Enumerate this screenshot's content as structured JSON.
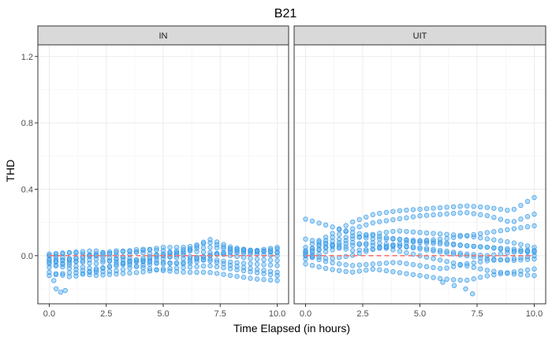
{
  "chart_data": {
    "type": "scatter",
    "title": "B21",
    "xlabel": "Time Elapsed (in hours)",
    "ylabel": "THD",
    "xlim": [
      -0.5,
      10.5
    ],
    "ylim": [
      -0.29,
      1.27
    ],
    "x_ticks": [
      0,
      2.5,
      5,
      7.5,
      10
    ],
    "x_tick_labels": [
      "0.0",
      "2.5",
      "5.0",
      "7.5",
      "10.0"
    ],
    "y_ticks": [
      0,
      0.4,
      0.8,
      1.2
    ],
    "y_tick_labels": [
      "0.0",
      "0.4",
      "0.8",
      "1.2"
    ],
    "grid": true,
    "point_color": "#56B4E9",
    "point_stroke": "#2E8FE8",
    "reference_line": {
      "y": 0,
      "color": "#F8766D",
      "style": "dashed"
    },
    "panels": [
      {
        "label": "IN",
        "series": [
          {
            "x": [
              0,
              1,
              2,
              3,
              4,
              5,
              6,
              7,
              8,
              9,
              10
            ],
            "y": [
              -0.02,
              -0.03,
              -0.05,
              -0.02,
              0.03,
              0.05,
              0.05,
              0.08,
              0.04,
              0.03,
              0.02
            ]
          },
          {
            "x": [
              0,
              1,
              2,
              3,
              4,
              5,
              6,
              7,
              8,
              9,
              10
            ],
            "y": [
              0.0,
              0.02,
              0.0,
              -0.02,
              -0.04,
              -0.02,
              0.02,
              0.1,
              0.05,
              0.03,
              0.05
            ]
          },
          {
            "x": [
              0,
              1,
              2,
              3,
              4,
              5,
              6,
              7,
              8,
              9,
              10
            ],
            "y": [
              -0.03,
              -0.06,
              -0.08,
              -0.06,
              -0.03,
              0.0,
              0.03,
              0.02,
              0.0,
              -0.02,
              -0.03
            ]
          },
          {
            "x": [
              0,
              1,
              2,
              3,
              4,
              5,
              6,
              7,
              8,
              9,
              10
            ],
            "y": [
              -0.05,
              -0.08,
              -0.1,
              -0.09,
              -0.06,
              -0.04,
              -0.05,
              -0.02,
              -0.04,
              -0.05,
              -0.06
            ]
          },
          {
            "x": [
              0,
              1,
              2,
              3,
              4,
              5,
              6,
              7,
              8,
              9,
              10
            ],
            "y": [
              -0.12,
              -0.1,
              -0.12,
              -0.11,
              -0.1,
              -0.08,
              -0.07,
              -0.06,
              -0.08,
              -0.1,
              -0.12
            ]
          },
          {
            "x": [
              0,
              1,
              2,
              3,
              4,
              5,
              6,
              7,
              8,
              9,
              10
            ],
            "y": [
              0.0,
              -0.02,
              0.01,
              0.03,
              0.02,
              0.0,
              -0.02,
              0.0,
              0.02,
              0.01,
              0.0
            ]
          },
          {
            "x": [
              0,
              1,
              2,
              3,
              4,
              5,
              6,
              7,
              8,
              9,
              10
            ],
            "y": [
              -0.07,
              -0.04,
              -0.02,
              -0.04,
              -0.07,
              -0.09,
              -0.1,
              -0.1,
              -0.12,
              -0.14,
              -0.15
            ]
          },
          {
            "x": [
              0,
              1,
              2,
              3,
              4,
              5,
              6,
              7,
              8,
              9,
              10
            ],
            "y": [
              0.01,
              0.02,
              0.03,
              0.0,
              -0.03,
              -0.05,
              -0.04,
              0.0,
              0.03,
              0.02,
              0.04
            ]
          },
          {
            "x": [
              0,
              1,
              2,
              3,
              4,
              5,
              6,
              7,
              8,
              9,
              10
            ],
            "y": [
              -0.04,
              -0.02,
              0.0,
              0.02,
              0.04,
              0.03,
              0.0,
              -0.03,
              -0.06,
              -0.08,
              -0.1
            ]
          },
          {
            "x": [
              0,
              1,
              2,
              3,
              4,
              5,
              6,
              7,
              8,
              9,
              10
            ],
            "y": [
              -0.1,
              -0.13,
              -0.09,
              -0.05,
              -0.02,
              0.01,
              0.04,
              0.05,
              0.04,
              0.03,
              0.02
            ]
          }
        ],
        "extra_points": {
          "x": [
            0.3,
            0.5,
            0.7,
            0.2
          ],
          "y": [
            -0.2,
            -0.22,
            -0.21,
            -0.15
          ]
        }
      },
      {
        "label": "UIT",
        "series": [
          {
            "x": [
              0,
              1,
              2,
              3,
              4,
              5,
              6,
              7,
              8,
              9,
              10
            ],
            "y": [
              0.05,
              0.12,
              0.2,
              0.25,
              0.27,
              0.28,
              0.29,
              0.3,
              0.29,
              0.27,
              0.35
            ]
          },
          {
            "x": [
              0,
              1,
              2,
              3,
              4,
              5,
              6,
              7,
              8,
              9,
              10
            ],
            "y": [
              0.02,
              0.1,
              0.16,
              0.2,
              0.22,
              0.24,
              0.25,
              0.26,
              0.24,
              0.2,
              0.25
            ]
          },
          {
            "x": [
              0,
              1,
              2,
              3,
              4,
              5,
              6,
              7,
              8,
              9,
              10
            ],
            "y": [
              0.0,
              0.06,
              0.1,
              0.13,
              0.15,
              0.14,
              0.13,
              0.12,
              0.1,
              0.08,
              0.05
            ]
          },
          {
            "x": [
              0,
              1,
              2,
              3,
              4,
              5,
              6,
              7,
              8,
              9,
              10
            ],
            "y": [
              0.03,
              0.08,
              0.12,
              0.1,
              0.1,
              0.09,
              0.08,
              0.06,
              0.05,
              0.03,
              0.02
            ]
          },
          {
            "x": [
              0,
              1,
              2,
              3,
              4,
              5,
              6,
              7,
              8,
              9,
              10
            ],
            "y": [
              -0.02,
              0.03,
              0.06,
              0.08,
              0.06,
              0.04,
              0.02,
              0.0,
              -0.02,
              -0.03,
              -0.02
            ]
          },
          {
            "x": [
              0,
              1,
              2,
              3,
              4,
              5,
              6,
              7,
              8,
              9,
              10
            ],
            "y": [
              0.0,
              -0.04,
              -0.06,
              -0.05,
              -0.04,
              -0.06,
              -0.08,
              -0.05,
              -0.03,
              -0.02,
              0.0
            ]
          },
          {
            "x": [
              0,
              1,
              2,
              3,
              4,
              5,
              6,
              7,
              8,
              9,
              10
            ],
            "y": [
              -0.05,
              -0.08,
              -0.1,
              -0.08,
              -0.1,
              -0.12,
              -0.14,
              -0.15,
              -0.12,
              -0.1,
              -0.08
            ]
          },
          {
            "x": [
              0,
              1,
              2,
              3,
              4,
              5,
              6,
              7,
              8,
              9,
              10
            ],
            "y": [
              0.22,
              0.18,
              0.14,
              0.12,
              0.1,
              0.08,
              0.07,
              0.06,
              0.05,
              0.04,
              0.03
            ]
          },
          {
            "x": [
              0,
              1,
              2,
              3,
              4,
              5,
              6,
              7,
              8,
              9,
              10
            ],
            "y": [
              0.02,
              0.05,
              0.08,
              0.06,
              0.03,
              0.0,
              -0.03,
              -0.06,
              -0.09,
              -0.11,
              -0.12
            ]
          },
          {
            "x": [
              0,
              1,
              2,
              3,
              4,
              5,
              6,
              7,
              8,
              9,
              10
            ],
            "y": [
              0.1,
              0.07,
              0.03,
              0.04,
              0.06,
              0.05,
              0.03,
              0.01,
              0.0,
              0.02,
              0.03
            ]
          },
          {
            "x": [
              0,
              1,
              2,
              3,
              4,
              5,
              6,
              7,
              8,
              9,
              10
            ],
            "y": [
              0.01,
              -0.02,
              0.0,
              0.04,
              0.07,
              0.09,
              0.1,
              0.12,
              0.14,
              0.16,
              0.18
            ]
          }
        ],
        "extra_points": {
          "x": [
            6.0,
            6.5,
            7.0,
            7.3
          ],
          "y": [
            -0.16,
            -0.18,
            -0.2,
            -0.23
          ]
        }
      }
    ]
  }
}
